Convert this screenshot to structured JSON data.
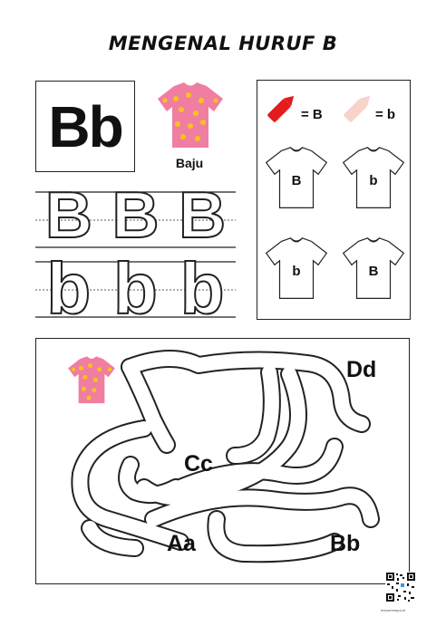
{
  "title": "MENGENAL HURUF B",
  "letter_card": {
    "letters": "Bb"
  },
  "picture_word": "Baju",
  "tracing": {
    "upper": [
      "B",
      "B",
      "B"
    ],
    "lower": [
      "b",
      "b",
      "b"
    ]
  },
  "color_key": {
    "big": {
      "label": "= B",
      "color": "#e31d1d"
    },
    "small": {
      "label": "= b",
      "color": "#f8d3c9"
    }
  },
  "shirts": [
    "B",
    "b",
    "b",
    "B"
  ],
  "maze": {
    "targets": [
      "Dd",
      "Cc",
      "Aa",
      "Bb"
    ],
    "start_icon": "pink-flower-shirt"
  },
  "qr_caption": "lexusemmpa.id"
}
